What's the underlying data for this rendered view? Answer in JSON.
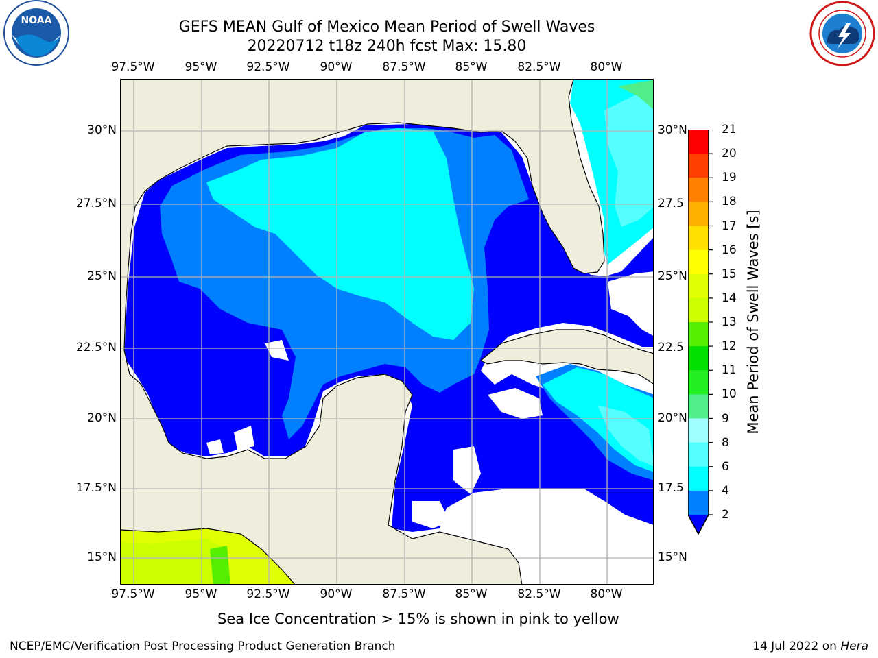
{
  "title": {
    "line1": "GEFS MEAN Gulf of Mexico Mean Period of Swell Waves",
    "line2": "20220712 t18z 240h fcst   Max: 15.80"
  },
  "map": {
    "lon_labels": [
      "97.5°W",
      "95°W",
      "92.5°W",
      "90°W",
      "87.5°W",
      "85°W",
      "82.5°W",
      "80°W"
    ],
    "lat_labels": [
      "30°N",
      "27.5°N",
      "25°N",
      "22.5°N",
      "20°N",
      "17.5°N",
      "15°N"
    ],
    "lat_labels_right": [
      "30°N",
      "27.5",
      "25°N",
      "22.5",
      "20°N",
      "17.5",
      "15°N"
    ],
    "land_color": "#efeedd",
    "grid_color": "#b4b4b4"
  },
  "colorbar": {
    "label": "Mean Period of Swell Waves [s]",
    "ticks": [
      "2",
      "4",
      "6",
      "8",
      "9",
      "10",
      "11",
      "12",
      "13",
      "14",
      "15",
      "16",
      "17",
      "18",
      "19",
      "20",
      "21"
    ],
    "colors": [
      "#0000ff",
      "#0080ff",
      "#00ffff",
      "#55ffff",
      "#a0ffff",
      "#50ee88",
      "#22ee22",
      "#00e000",
      "#55ee00",
      "#ccff00",
      "#e0ff00",
      "#ffff00",
      "#ffe000",
      "#ffb000",
      "#ff8000",
      "#ff4000",
      "#ff0000"
    ]
  },
  "logos": {
    "left": {
      "name": "NOAA"
    },
    "right": {
      "name": "NATIONAL WEATHER SERVICE"
    }
  },
  "notes": {
    "ice": "Sea Ice Concentration > 15% is shown in pink to yellow"
  },
  "footer": {
    "left": "NCEP/EMC/Verification Post Processing Product Generation Branch",
    "date": "14 Jul 2022 on ",
    "host": "Hera"
  }
}
